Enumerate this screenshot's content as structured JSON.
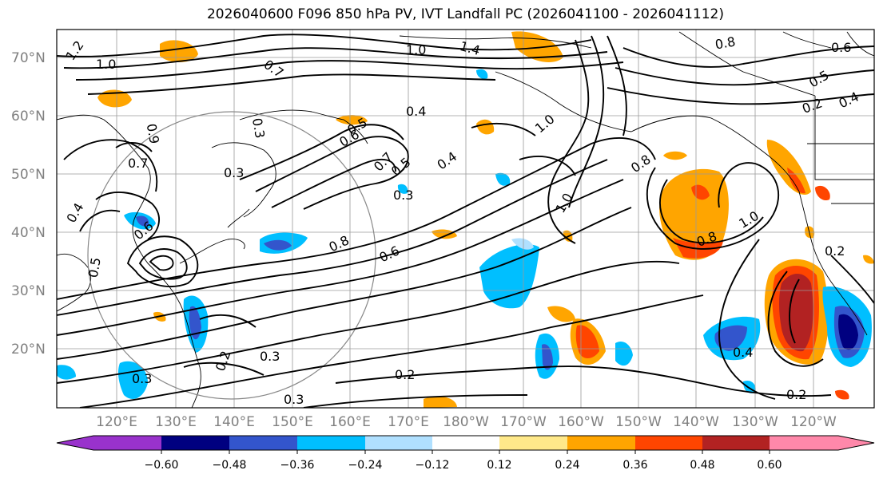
{
  "title": "2026040600 F096 850 hPa PV, IVT Landfall PC (2026041100 - 2026041112)",
  "map": {
    "lat_labels": [
      "70°N",
      "60°N",
      "50°N",
      "40°N",
      "30°N",
      "20°N"
    ],
    "lon_labels": [
      "120°E",
      "130°E",
      "140°E",
      "150°E",
      "160°E",
      "170°E",
      "180°W",
      "170°W",
      "160°W",
      "150°W",
      "140°W",
      "130°W",
      "120°W"
    ],
    "contour_labels": [
      "1.0",
      "1.2",
      "1.0",
      "1.4",
      "0.8",
      "0.6",
      "0.5",
      "0.4",
      "0.2",
      "0.7",
      "0.9",
      "0.3",
      "0.4",
      "0.6",
      "0.5",
      "0.7",
      "0.5",
      "0.4",
      "1.0",
      "0.8",
      "1.0",
      "0.7",
      "0.3",
      "0.3",
      "0.8",
      "0.6",
      "0.8",
      "1.0",
      "0.2",
      "0.4",
      "0.5",
      "0.6",
      "0.3",
      "0.3",
      "0.2",
      "0.3",
      "0.2",
      "0.4",
      "0.2"
    ]
  },
  "colorbar": {
    "ticks": [
      "−0.60",
      "−0.48",
      "−0.36",
      "−0.24",
      "−0.12",
      "0.12",
      "0.24",
      "0.36",
      "0.48",
      "0.60"
    ],
    "colors": [
      "#9932cc",
      "#000080",
      "#3355cc",
      "#00bfff",
      "#b0e0ff",
      "#ffffff",
      "#ffe98a",
      "#ffa500",
      "#ff4500",
      "#b22222",
      "#ff88aa"
    ]
  },
  "chart_data": {
    "type": "heatmap",
    "title": "2026040600 F096 850 hPa PV, IVT Landfall PC (2026041100 - 2026041112)",
    "xlabel": "",
    "ylabel": "",
    "lon_range": [
      "110°E",
      "115°W"
    ],
    "lat_range": [
      "10°N",
      "75°N"
    ],
    "grid": true,
    "contour_levels": [
      0.2,
      0.3,
      0.4,
      0.5,
      0.6,
      0.7,
      0.8,
      0.9,
      1.0,
      1.2,
      1.4
    ],
    "color_levels": [
      -0.6,
      -0.48,
      -0.36,
      -0.24,
      -0.12,
      0.12,
      0.24,
      0.36,
      0.48,
      0.6
    ]
  }
}
